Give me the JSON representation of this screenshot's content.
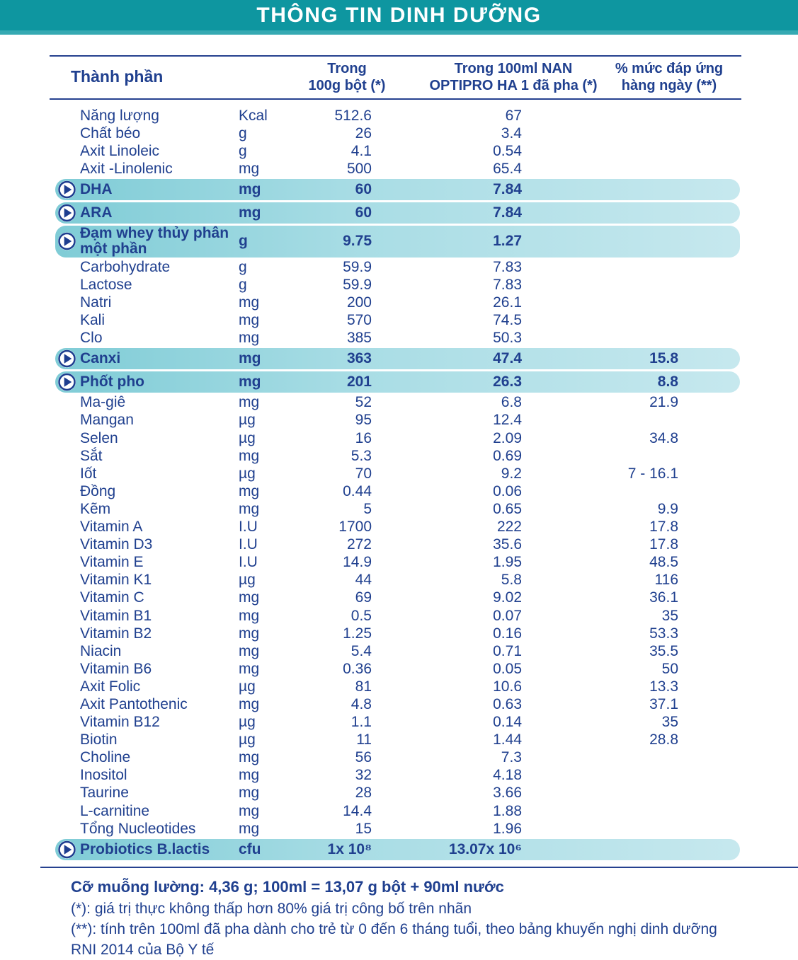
{
  "title": "THÔNG TIN DINH DƯỠNG",
  "colors": {
    "header_teal": "#0e96a0",
    "header_teal_strip": "#35a9b2",
    "text_navy": "#20408f",
    "highlight_gradient_left": "#7fccd6",
    "highlight_gradient_right": "#c6e8ee"
  },
  "table": {
    "header": {
      "component": "Thành phần",
      "per_100g": "Trong\n100g bột (*)",
      "per_100ml": "Trong 100ml NAN\nOPTIPRO HA 1 đã pha (*)",
      "daily_pct": "% mức đáp ứng\nhàng ngày (**)"
    },
    "rows": [
      {
        "name": "Năng lượng",
        "unit": "Kcal",
        "per_100g": "512.6",
        "per_100ml": "67",
        "daily_pct": "",
        "highlight": false
      },
      {
        "name": "Chất béo",
        "unit": "g",
        "per_100g": "26",
        "per_100ml": "3.4",
        "daily_pct": "",
        "highlight": false
      },
      {
        "name": "Axit Linoleic",
        "unit": "g",
        "per_100g": "4.1",
        "per_100ml": "0.54",
        "daily_pct": "",
        "highlight": false
      },
      {
        "name": "Axit -Linolenic",
        "unit": "mg",
        "per_100g": "500",
        "per_100ml": "65.4",
        "daily_pct": "",
        "highlight": false
      },
      {
        "name": "DHA",
        "unit": "mg",
        "per_100g": "60",
        "per_100ml": "7.84",
        "daily_pct": "",
        "highlight": true
      },
      {
        "name": "ARA",
        "unit": "mg",
        "per_100g": "60",
        "per_100ml": "7.84",
        "daily_pct": "",
        "highlight": true
      },
      {
        "name": "Đạm whey thủy phân\nmột phần",
        "unit": "g",
        "per_100g": "9.75",
        "per_100ml": "1.27",
        "daily_pct": "",
        "highlight": true
      },
      {
        "name": "Carbohydrate",
        "unit": "g",
        "per_100g": "59.9",
        "per_100ml": "7.83",
        "daily_pct": "",
        "highlight": false
      },
      {
        "name": "Lactose",
        "unit": "g",
        "per_100g": "59.9",
        "per_100ml": "7.83",
        "daily_pct": "",
        "highlight": false
      },
      {
        "name": "Natri",
        "unit": "mg",
        "per_100g": "200",
        "per_100ml": "26.1",
        "daily_pct": "",
        "highlight": false
      },
      {
        "name": "Kali",
        "unit": "mg",
        "per_100g": "570",
        "per_100ml": "74.5",
        "daily_pct": "",
        "highlight": false
      },
      {
        "name": "Clo",
        "unit": "mg",
        "per_100g": "385",
        "per_100ml": "50.3",
        "daily_pct": "",
        "highlight": false
      },
      {
        "name": "Canxi",
        "unit": "mg",
        "per_100g": "363",
        "per_100ml": "47.4",
        "daily_pct": "15.8",
        "highlight": true
      },
      {
        "name": "Phốt pho",
        "unit": "mg",
        "per_100g": "201",
        "per_100ml": "26.3",
        "daily_pct": "8.8",
        "highlight": true
      },
      {
        "name": "Ma-giê",
        "unit": "mg",
        "per_100g": "52",
        "per_100ml": "6.8",
        "daily_pct": "21.9",
        "highlight": false
      },
      {
        "name": "Mangan",
        "unit": "µg",
        "per_100g": "95",
        "per_100ml": "12.4",
        "daily_pct": "",
        "highlight": false
      },
      {
        "name": "Selen",
        "unit": "µg",
        "per_100g": "16",
        "per_100ml": "2.09",
        "daily_pct": "34.8",
        "highlight": false
      },
      {
        "name": "Sắt",
        "unit": "mg",
        "per_100g": "5.3",
        "per_100ml": "0.69",
        "daily_pct": "",
        "highlight": false
      },
      {
        "name": "Iốt",
        "unit": "µg",
        "per_100g": "70",
        "per_100ml": "9.2",
        "daily_pct": "7 - 16.1",
        "highlight": false
      },
      {
        "name": "Đồng",
        "unit": "mg",
        "per_100g": "0.44",
        "per_100ml": "0.06",
        "daily_pct": "",
        "highlight": false
      },
      {
        "name": "Kẽm",
        "unit": "mg",
        "per_100g": "5",
        "per_100ml": "0.65",
        "daily_pct": "9.9",
        "highlight": false
      },
      {
        "name": "Vitamin A",
        "unit": "I.U",
        "per_100g": "1700",
        "per_100ml": "222",
        "daily_pct": "17.8",
        "highlight": false
      },
      {
        "name": "Vitamin D3",
        "unit": "I.U",
        "per_100g": "272",
        "per_100ml": "35.6",
        "daily_pct": "17.8",
        "highlight": false
      },
      {
        "name": "Vitamin E",
        "unit": "I.U",
        "per_100g": "14.9",
        "per_100ml": "1.95",
        "daily_pct": "48.5",
        "highlight": false
      },
      {
        "name": "Vitamin K1",
        "unit": "µg",
        "per_100g": "44",
        "per_100ml": "5.8",
        "daily_pct": "116",
        "highlight": false
      },
      {
        "name": "Vitamin C",
        "unit": "mg",
        "per_100g": "69",
        "per_100ml": "9.02",
        "daily_pct": "36.1",
        "highlight": false
      },
      {
        "name": "Vitamin B1",
        "unit": "mg",
        "per_100g": "0.5",
        "per_100ml": "0.07",
        "daily_pct": "35",
        "highlight": false
      },
      {
        "name": "Vitamin B2",
        "unit": "mg",
        "per_100g": "1.25",
        "per_100ml": "0.16",
        "daily_pct": "53.3",
        "highlight": false
      },
      {
        "name": "Niacin",
        "unit": "mg",
        "per_100g": "5.4",
        "per_100ml": "0.71",
        "daily_pct": "35.5",
        "highlight": false
      },
      {
        "name": "Vitamin B6",
        "unit": "mg",
        "per_100g": "0.36",
        "per_100ml": "0.05",
        "daily_pct": "50",
        "highlight": false
      },
      {
        "name": "Axit Folic",
        "unit": "µg",
        "per_100g": "81",
        "per_100ml": "10.6",
        "daily_pct": "13.3",
        "highlight": false
      },
      {
        "name": "Axit Pantothenic",
        "unit": "mg",
        "per_100g": "4.8",
        "per_100ml": "0.63",
        "daily_pct": "37.1",
        "highlight": false
      },
      {
        "name": "Vitamin B12",
        "unit": "µg",
        "per_100g": "1.1",
        "per_100ml": "0.14",
        "daily_pct": "35",
        "highlight": false
      },
      {
        "name": "Biotin",
        "unit": "µg",
        "per_100g": "11",
        "per_100ml": "1.44",
        "daily_pct": "28.8",
        "highlight": false
      },
      {
        "name": "Choline",
        "unit": "mg",
        "per_100g": "56",
        "per_100ml": "7.3",
        "daily_pct": "",
        "highlight": false
      },
      {
        "name": "Inositol",
        "unit": "mg",
        "per_100g": "32",
        "per_100ml": "4.18",
        "daily_pct": "",
        "highlight": false
      },
      {
        "name": "Taurine",
        "unit": "mg",
        "per_100g": "28",
        "per_100ml": "3.66",
        "daily_pct": "",
        "highlight": false
      },
      {
        "name": "L-carnitine",
        "unit": "mg",
        "per_100g": "14.4",
        "per_100ml": "1.88",
        "daily_pct": "",
        "highlight": false
      },
      {
        "name": "Tổng Nucleotides",
        "unit": "mg",
        "per_100g": "15",
        "per_100ml": "1.96",
        "daily_pct": "",
        "highlight": false
      },
      {
        "name": "Probiotics B.lactis",
        "unit": "cfu",
        "per_100g": "1x 10⁸",
        "per_100ml": "13.07x 10⁶",
        "daily_pct": "",
        "highlight": true
      }
    ]
  },
  "footnotes": {
    "scoop": "Cỡ muỗng lường: 4,36 g; 100ml = 13,07 g bột + 90ml nước",
    "star": "(*): giá trị thực không thấp hơn 80% giá trị công bố trên nhãn",
    "double_star": "(**): tính trên 100ml đã pha dành cho trẻ từ 0 đến 6 tháng tuổi, theo bảng khuyến nghị dinh dưỡng RNI 2014 của Bộ Y tế"
  }
}
